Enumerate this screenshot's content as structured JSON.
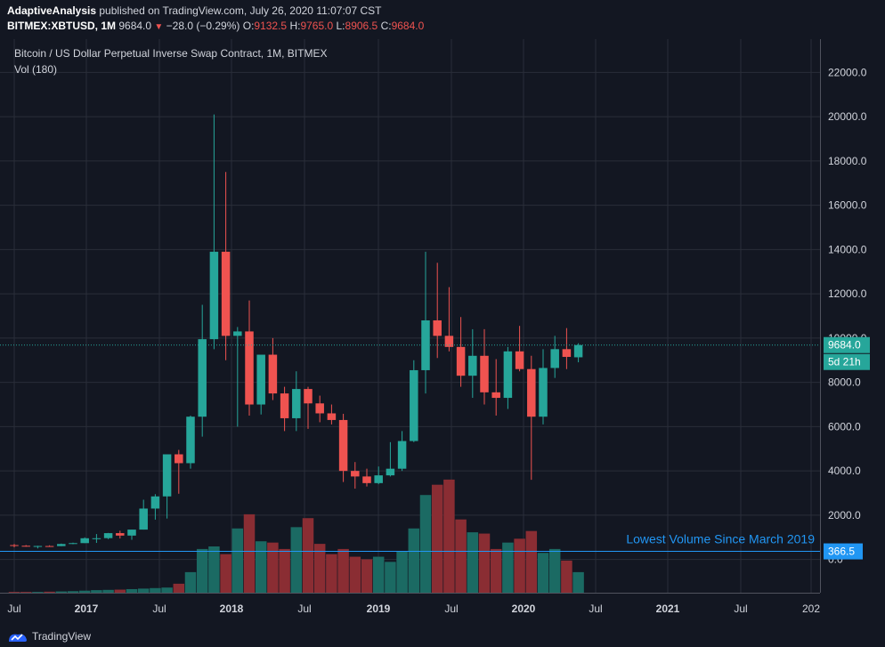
{
  "header": {
    "author": "AdaptiveAnalysis",
    "published": " published on TradingView.com, July 26, 2020 11:07:07 CST",
    "symbol": "BITMEX:XBTUSD, 1M",
    "last": "9684.0",
    "change": "−28.0 (−0.29%)",
    "o_label": "O:",
    "o": "9132.5",
    "h_label": "H:",
    "h": "9765.0",
    "l_label": "L:",
    "l": "8906.5",
    "c_label": "C:",
    "c": "9684.0"
  },
  "chart_data": {
    "type": "candlestick",
    "title": "Bitcoin / US Dollar Perpetual Inverse Swap Contract, 1M, BITMEX",
    "volume_label": "Vol (180)",
    "ylim": [
      -1500,
      23500
    ],
    "y_ticks": [
      "22000.0",
      "20000.0",
      "18000.0",
      "16000.0",
      "14000.0",
      "12000.0",
      "10000.0",
      "8000.0",
      "6000.0",
      "4000.0",
      "2000.0",
      "0.0"
    ],
    "x_ticks": [
      "Jul",
      "2017",
      "Jul",
      "2018",
      "Jul",
      "2019",
      "Jul",
      "2020",
      "Jul",
      "2021",
      "Jul",
      "202"
    ],
    "colors": {
      "up": "#26a69a",
      "down": "#ef5350",
      "vol_up": "#1b6a63",
      "vol_down": "#8a2d33",
      "last": "#26a69a",
      "hline": "#2196f3"
    },
    "last_price_label": "9684.0",
    "countdown_label": "5d 21h",
    "hline_value": 366.5,
    "hline_label": "366.5",
    "annotation": "Lowest Volume Since March 2019",
    "volume_scale_max": 4500,
    "candles": [
      {
        "o": 650,
        "h": 700,
        "l": 550,
        "c": 620,
        "v": 30
      },
      {
        "o": 620,
        "h": 650,
        "l": 580,
        "c": 580,
        "v": 30
      },
      {
        "o": 575,
        "h": 620,
        "l": 500,
        "c": 610,
        "v": 30
      },
      {
        "o": 608,
        "h": 640,
        "l": 590,
        "c": 600,
        "v": 40
      },
      {
        "o": 605,
        "h": 720,
        "l": 600,
        "c": 700,
        "v": 50
      },
      {
        "o": 700,
        "h": 760,
        "l": 690,
        "c": 740,
        "v": 60
      },
      {
        "o": 740,
        "h": 1000,
        "l": 740,
        "c": 960,
        "v": 80
      },
      {
        "o": 960,
        "h": 1150,
        "l": 750,
        "c": 960,
        "v": 100
      },
      {
        "o": 965,
        "h": 1200,
        "l": 920,
        "c": 1190,
        "v": 110
      },
      {
        "o": 1190,
        "h": 1300,
        "l": 950,
        "c": 1080,
        "v": 120
      },
      {
        "o": 1080,
        "h": 1350,
        "l": 890,
        "c": 1350,
        "v": 140
      },
      {
        "o": 1350,
        "h": 2700,
        "l": 1350,
        "c": 2300,
        "v": 160
      },
      {
        "o": 2300,
        "h": 2950,
        "l": 1800,
        "c": 2850,
        "v": 180
      },
      {
        "o": 2850,
        "h": 4750,
        "l": 1850,
        "c": 4750,
        "v": 200
      },
      {
        "o": 4750,
        "h": 4950,
        "l": 2970,
        "c": 4350,
        "v": 350
      },
      {
        "o": 4350,
        "h": 6500,
        "l": 4100,
        "c": 6450,
        "v": 800
      },
      {
        "o": 6450,
        "h": 11500,
        "l": 5550,
        "c": 9950,
        "v": 1700
      },
      {
        "o": 9950,
        "h": 20100,
        "l": 9500,
        "c": 13900,
        "v": 1800
      },
      {
        "o": 13900,
        "h": 17500,
        "l": 9000,
        "c": 10100,
        "v": 1500
      },
      {
        "o": 10100,
        "h": 10500,
        "l": 6000,
        "c": 10300,
        "v": 2500
      },
      {
        "o": 10300,
        "h": 11700,
        "l": 6500,
        "c": 7000,
        "v": 3050
      },
      {
        "o": 7000,
        "h": 9000,
        "l": 6550,
        "c": 9250,
        "v": 2000
      },
      {
        "o": 9250,
        "h": 10000,
        "l": 7200,
        "c": 7500,
        "v": 1950
      },
      {
        "o": 7500,
        "h": 7800,
        "l": 5800,
        "c": 6380,
        "v": 1700
      },
      {
        "o": 6380,
        "h": 8500,
        "l": 5800,
        "c": 7700,
        "v": 2550
      },
      {
        "o": 7700,
        "h": 7800,
        "l": 5900,
        "c": 7050,
        "v": 2900
      },
      {
        "o": 7050,
        "h": 7400,
        "l": 6200,
        "c": 6600,
        "v": 1900
      },
      {
        "o": 6600,
        "h": 7000,
        "l": 6100,
        "c": 6300,
        "v": 1500
      },
      {
        "o": 6300,
        "h": 6580,
        "l": 3500,
        "c": 4000,
        "v": 1700
      },
      {
        "o": 4000,
        "h": 4400,
        "l": 3200,
        "c": 3750,
        "v": 1400
      },
      {
        "o": 3750,
        "h": 4100,
        "l": 3300,
        "c": 3450,
        "v": 1300
      },
      {
        "o": 3450,
        "h": 4200,
        "l": 3400,
        "c": 3800,
        "v": 1400
      },
      {
        "o": 3800,
        "h": 5300,
        "l": 3750,
        "c": 4100,
        "v": 1200
      },
      {
        "o": 4100,
        "h": 5800,
        "l": 4000,
        "c": 5350,
        "v": 1600
      },
      {
        "o": 5350,
        "h": 9000,
        "l": 5300,
        "c": 8550,
        "v": 2500
      },
      {
        "o": 8550,
        "h": 13900,
        "l": 7500,
        "c": 10800,
        "v": 3800
      },
      {
        "o": 10800,
        "h": 13400,
        "l": 9100,
        "c": 10100,
        "v": 4200
      },
      {
        "o": 10100,
        "h": 12300,
        "l": 9400,
        "c": 9600,
        "v": 4400
      },
      {
        "o": 9600,
        "h": 10950,
        "l": 7800,
        "c": 8300,
        "v": 2850
      },
      {
        "o": 8300,
        "h": 10400,
        "l": 7300,
        "c": 9200,
        "v": 2350
      },
      {
        "o": 9200,
        "h": 10400,
        "l": 7000,
        "c": 7550,
        "v": 2300
      },
      {
        "o": 7550,
        "h": 9050,
        "l": 6500,
        "c": 7300,
        "v": 1700
      },
      {
        "o": 7300,
        "h": 9600,
        "l": 6800,
        "c": 9400,
        "v": 1950
      },
      {
        "o": 9400,
        "h": 10550,
        "l": 8500,
        "c": 8600,
        "v": 2100
      },
      {
        "o": 8600,
        "h": 9200,
        "l": 3600,
        "c": 6450,
        "v": 2400
      },
      {
        "o": 6450,
        "h": 9500,
        "l": 6100,
        "c": 8650,
        "v": 1550
      },
      {
        "o": 8650,
        "h": 10100,
        "l": 8200,
        "c": 9500,
        "v": 1700
      },
      {
        "o": 9500,
        "h": 10450,
        "l": 8600,
        "c": 9150,
        "v": 1250
      },
      {
        "o": 9132.5,
        "h": 9765,
        "l": 8906.5,
        "c": 9684,
        "v": 800
      }
    ]
  },
  "footer": {
    "brand": "TradingView"
  }
}
